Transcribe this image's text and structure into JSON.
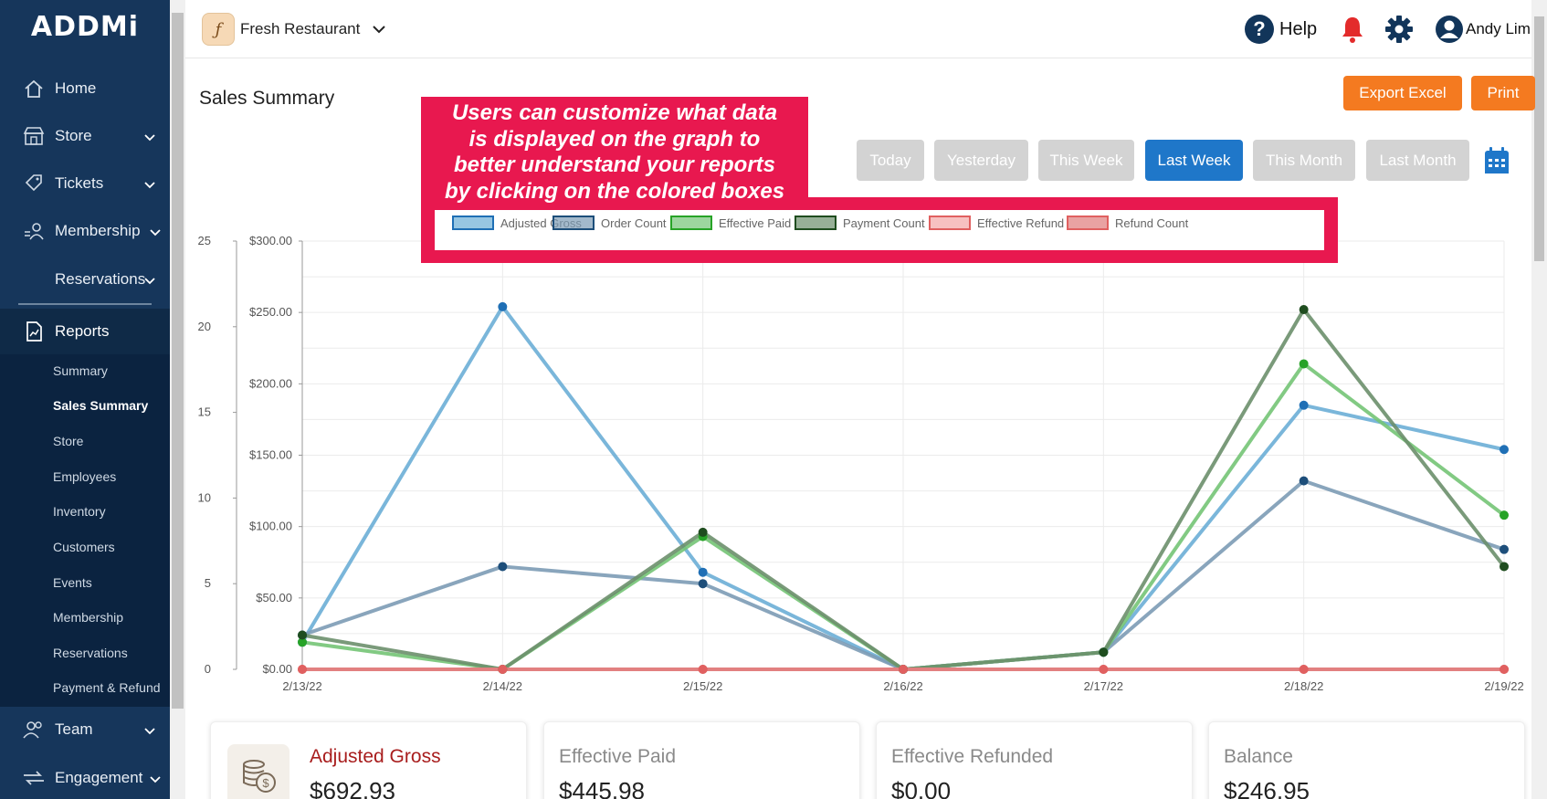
{
  "sidebar": {
    "logo": "ADDMi",
    "items": [
      {
        "label": "Home",
        "icon": "home-icon"
      },
      {
        "label": "Store",
        "icon": "store-icon"
      },
      {
        "label": "Tickets",
        "icon": "ticket-icon"
      },
      {
        "label": "Membership",
        "icon": "membership-icon"
      },
      {
        "label": "Reservations",
        "icon": ""
      },
      {
        "label": "Reports",
        "icon": "reports-icon"
      },
      {
        "label": "Team",
        "icon": "team-icon"
      },
      {
        "label": "Engagement",
        "icon": "engagement-icon"
      }
    ],
    "reports_submenu": [
      "Summary",
      "Sales Summary",
      "Store",
      "Employees",
      "Inventory",
      "Customers",
      "Events",
      "Membership",
      "Reservations",
      "Payment & Refund"
    ],
    "current_submenu": "Sales Summary"
  },
  "header": {
    "store_name": "Fresh Restaurant",
    "help_label": "Help",
    "user_name": "Andy Lim"
  },
  "main": {
    "title": "Sales Summary",
    "export_label": "Export Excel",
    "print_label": "Print",
    "ranges": [
      "Today",
      "Yesterday",
      "This Week",
      "Last Week",
      "This Month",
      "Last Month"
    ],
    "active_range": "Last Week"
  },
  "annotation": {
    "lines": [
      "Users can customize what data",
      "is displayed on the graph to",
      "better understand your reports",
      "by clicking on the colored boxes"
    ],
    "color": "#e8184f"
  },
  "chart_data": {
    "type": "line",
    "x": [
      "2/13/22",
      "2/14/22",
      "2/15/22",
      "2/16/22",
      "2/17/22",
      "2/18/22",
      "2/19/22"
    ],
    "left_axis": {
      "ticks": [
        0,
        5,
        10,
        15,
        20,
        25
      ],
      "range": [
        0,
        25
      ]
    },
    "right_axis": {
      "ticks": [
        "$0.00",
        "$50.00",
        "$100.00",
        "$150.00",
        "$200.00",
        "$250.00",
        "$300.00"
      ],
      "range": [
        0,
        300
      ]
    },
    "grid": true,
    "legend_position": "top",
    "series": [
      {
        "name": "Adjusted Gross",
        "axis": "right",
        "color": "#6baed6",
        "point": "#1f6fb5",
        "values": [
          19,
          254,
          68,
          0,
          12,
          185,
          154
        ]
      },
      {
        "name": "Order Count",
        "axis": "left",
        "color": "#7c9bb5",
        "point": "#1d4e7a",
        "values": [
          2,
          6,
          5,
          0,
          1,
          11,
          7
        ]
      },
      {
        "name": "Effective Paid",
        "axis": "right",
        "color": "#74c476",
        "point": "#27a327",
        "values": [
          19,
          0,
          93,
          0,
          12,
          214,
          108
        ]
      },
      {
        "name": "Payment Count",
        "axis": "left",
        "color": "#6b8f6b",
        "point": "#1f4d1f",
        "values": [
          2,
          0,
          8,
          0,
          1,
          21,
          6
        ]
      },
      {
        "name": "Effective Refund",
        "axis": "right",
        "color": "#f4a6a6",
        "point": "#e06060",
        "values": [
          0,
          0,
          0,
          0,
          0,
          0,
          0
        ]
      },
      {
        "name": "Refund Count",
        "axis": "left",
        "color": "#e07b7b",
        "point": "#e06060",
        "values": [
          0,
          0,
          0,
          0,
          0,
          0,
          0
        ]
      }
    ]
  },
  "cards": [
    {
      "label": "Adjusted Gross",
      "value": "$692.93"
    },
    {
      "label": "Effective Paid",
      "value": "$445.98"
    },
    {
      "label": "Effective Refunded",
      "value": "$0.00"
    },
    {
      "label": "Balance",
      "value": "$246.95"
    }
  ]
}
